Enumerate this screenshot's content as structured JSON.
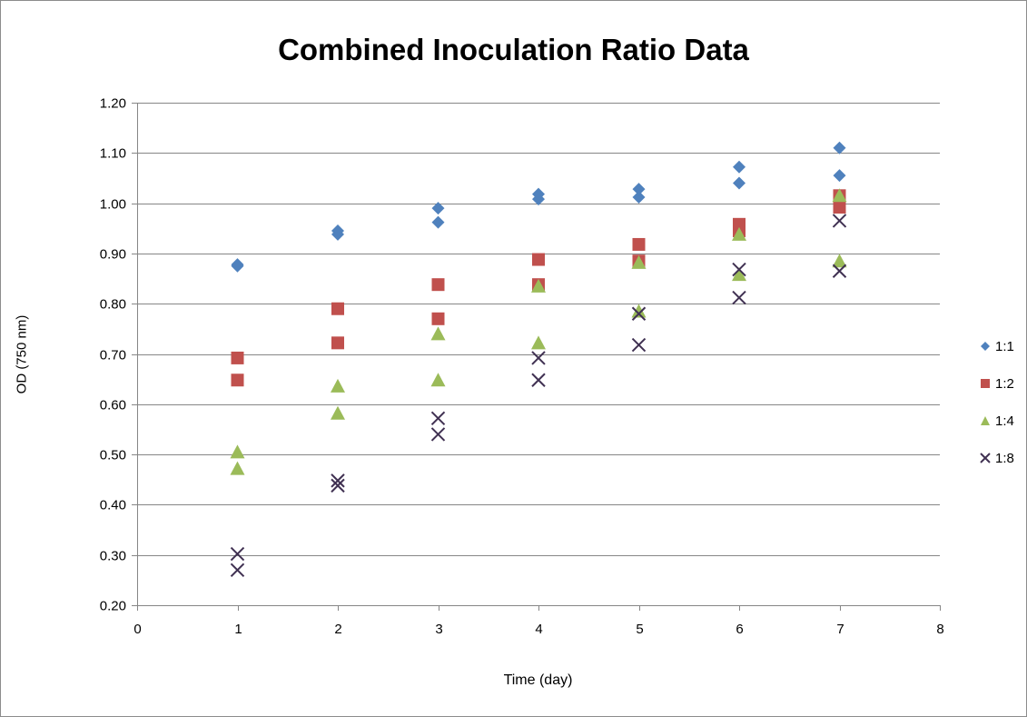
{
  "chart_data": {
    "type": "scatter",
    "title": "Combined Inoculation Ratio Data",
    "xlabel": "Time (day)",
    "ylabel": "OD (750 nm)",
    "xlim": [
      0,
      8
    ],
    "ylim": [
      0.2,
      1.2
    ],
    "x_ticks": [
      "0",
      "1",
      "2",
      "3",
      "4",
      "5",
      "6",
      "7",
      "8"
    ],
    "y_ticks": [
      "0.20",
      "0.30",
      "0.40",
      "0.50",
      "0.60",
      "0.70",
      "0.80",
      "0.90",
      "1.00",
      "1.10",
      "1.20"
    ],
    "grid": "horizontal",
    "legend_position": "right",
    "series": [
      {
        "name": "1:1",
        "marker": "diamond",
        "color": "#4f81bd",
        "points": [
          [
            1,
            0.875
          ],
          [
            1,
            0.878
          ],
          [
            2,
            0.938
          ],
          [
            2,
            0.945
          ],
          [
            3,
            0.962
          ],
          [
            3,
            0.99
          ],
          [
            4,
            1.008
          ],
          [
            4,
            1.018
          ],
          [
            5,
            1.012
          ],
          [
            5,
            1.028
          ],
          [
            6,
            1.04
          ],
          [
            6,
            1.072
          ],
          [
            7,
            1.055
          ],
          [
            7,
            1.11
          ]
        ]
      },
      {
        "name": "1:2",
        "marker": "square",
        "color": "#c0504d",
        "points": [
          [
            1,
            0.648
          ],
          [
            1,
            0.692
          ],
          [
            2,
            0.722
          ],
          [
            2,
            0.79
          ],
          [
            3,
            0.77
          ],
          [
            3,
            0.838
          ],
          [
            4,
            0.838
          ],
          [
            4,
            0.888
          ],
          [
            5,
            0.885
          ],
          [
            5,
            0.918
          ],
          [
            6,
            0.945
          ],
          [
            6,
            0.958
          ],
          [
            7,
            0.992
          ],
          [
            7,
            1.015
          ]
        ]
      },
      {
        "name": "1:4",
        "marker": "triangle",
        "color": "#9bbb59",
        "points": [
          [
            1,
            0.472
          ],
          [
            1,
            0.505
          ],
          [
            2,
            0.582
          ],
          [
            2,
            0.636
          ],
          [
            3,
            0.648
          ],
          [
            3,
            0.74
          ],
          [
            4,
            0.722
          ],
          [
            4,
            0.835
          ],
          [
            5,
            0.785
          ],
          [
            5,
            0.882
          ],
          [
            6,
            0.858
          ],
          [
            6,
            0.938
          ],
          [
            7,
            0.885
          ],
          [
            7,
            1.015
          ]
        ]
      },
      {
        "name": "1:8",
        "marker": "x",
        "color": "#403152",
        "points": [
          [
            1,
            0.27
          ],
          [
            1,
            0.302
          ],
          [
            2,
            0.438
          ],
          [
            2,
            0.448
          ],
          [
            3,
            0.54
          ],
          [
            3,
            0.572
          ],
          [
            4,
            0.648
          ],
          [
            4,
            0.692
          ],
          [
            5,
            0.718
          ],
          [
            5,
            0.78
          ],
          [
            6,
            0.812
          ],
          [
            6,
            0.868
          ],
          [
            7,
            0.865
          ],
          [
            7,
            0.965
          ]
        ]
      }
    ]
  }
}
